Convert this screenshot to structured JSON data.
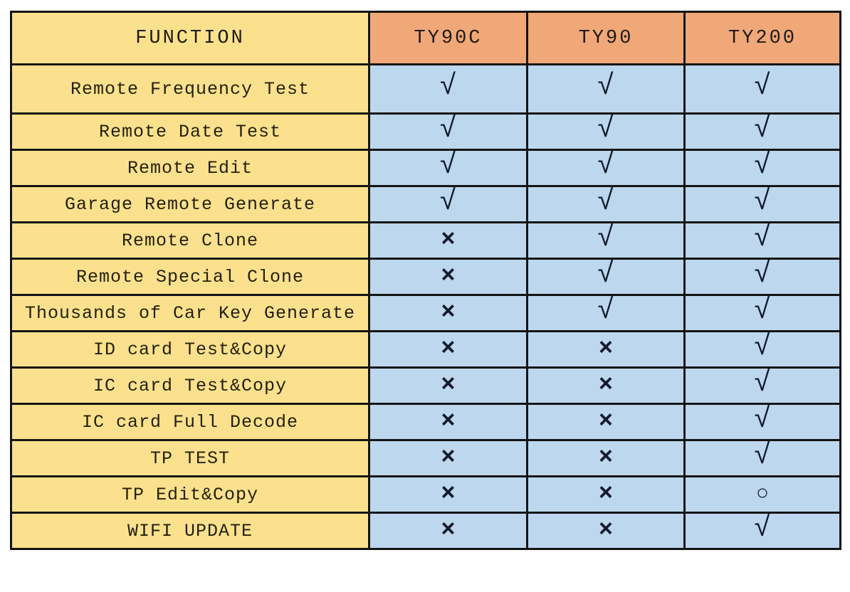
{
  "colors": {
    "function_column_bg": "#fbe18d",
    "model_header_bg": "#f0a878",
    "mark_cell_bg": "#bdd7ee",
    "grid_border": "#141414",
    "text": "#23200f",
    "mark": "#121a2b"
  },
  "symbols": {
    "check": "√",
    "cross": "×",
    "circle": "○"
  },
  "table": {
    "columns": [
      "FUNCTION",
      "TY90C",
      "TY90",
      "TY200"
    ],
    "rows": [
      {
        "function": "Remote Frequency Test",
        "marks": [
          "check",
          "check",
          "check"
        ]
      },
      {
        "function": "Remote Date Test",
        "marks": [
          "check",
          "check",
          "check"
        ]
      },
      {
        "function": "Remote Edit",
        "marks": [
          "check",
          "check",
          "check"
        ]
      },
      {
        "function": "Garage Remote Generate",
        "marks": [
          "check",
          "check",
          "check"
        ]
      },
      {
        "function": "Remote Clone",
        "marks": [
          "cross",
          "check",
          "check"
        ]
      },
      {
        "function": "Remote Special Clone",
        "marks": [
          "cross",
          "check",
          "check"
        ]
      },
      {
        "function": "Thousands of Car Key Generate",
        "marks": [
          "cross",
          "check",
          "check"
        ]
      },
      {
        "function": "ID card Test&Copy",
        "marks": [
          "cross",
          "cross",
          "check"
        ]
      },
      {
        "function": "IC card Test&Copy",
        "marks": [
          "cross",
          "cross",
          "check"
        ]
      },
      {
        "function": "IC card Full Decode",
        "marks": [
          "cross",
          "cross",
          "check"
        ]
      },
      {
        "function": "TP TEST",
        "marks": [
          "cross",
          "cross",
          "check"
        ]
      },
      {
        "function": "TP Edit&Copy",
        "marks": [
          "cross",
          "cross",
          "circle"
        ]
      },
      {
        "function": "WIFI UPDATE",
        "marks": [
          "cross",
          "cross",
          "check"
        ]
      }
    ]
  }
}
